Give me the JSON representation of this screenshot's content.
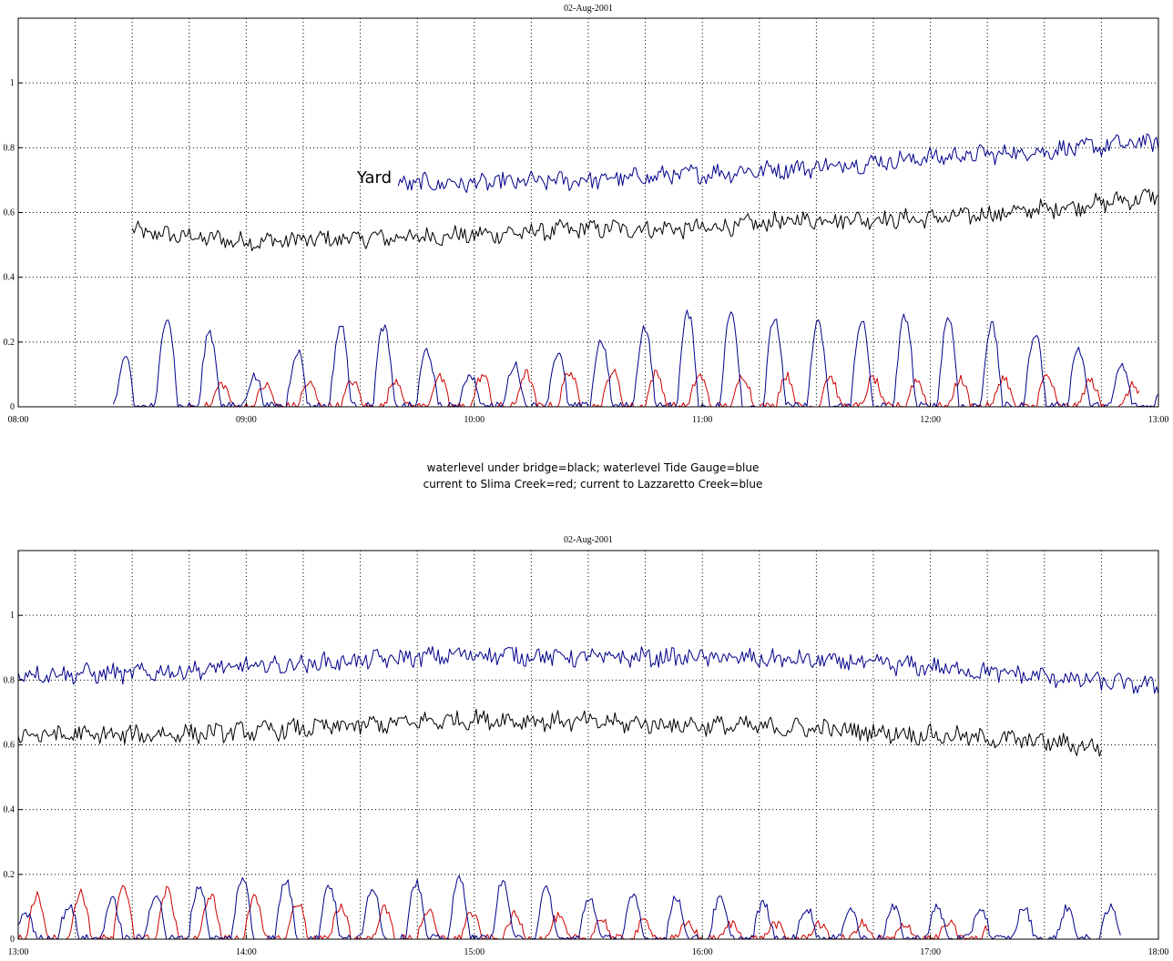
{
  "legend": {
    "line1": "waterlevel under bridge=black; waterlevel Tide Gauge=blue",
    "line2": "current to Slima Creek=red; current to Lazzaretto Creek=blue"
  },
  "chart_data": [
    {
      "type": "line",
      "title": "02-Aug-2001",
      "x_range": [
        "08:00",
        "13:00"
      ],
      "x_ticks": [
        "08:00",
        "09:00",
        "10:00",
        "11:00",
        "12:00",
        "13:00"
      ],
      "y_ticks": [
        "0",
        "0.2",
        "0.4",
        "0.6",
        "0.8",
        "1"
      ],
      "ylim": [
        0,
        1.2
      ],
      "grid": true,
      "annotation": {
        "text": "Yard",
        "x": "09:30",
        "y": 0.7
      },
      "series": [
        {
          "color": "#000000",
          "x": [
            "08:30",
            "09:00",
            "09:30",
            "10:00",
            "10:30",
            "11:00",
            "11:30",
            "12:00",
            "12:30",
            "13:00"
          ],
          "values": [
            0.54,
            0.51,
            0.52,
            0.53,
            0.55,
            0.55,
            0.58,
            0.58,
            0.61,
            0.65
          ]
        },
        {
          "color": "#00008b",
          "x": [
            "09:40",
            "10:00",
            "10:30",
            "11:00",
            "11:30",
            "12:00",
            "12:30",
            "13:00"
          ],
          "values": [
            0.69,
            0.69,
            0.7,
            0.72,
            0.74,
            0.77,
            0.79,
            0.82
          ]
        },
        {
          "color": "#cc0000",
          "x": [
            "08:45",
            "09:00",
            "09:30",
            "10:00",
            "10:30",
            "11:00",
            "11:30",
            "12:00",
            "12:30",
            "12:55"
          ],
          "values": [
            0.05,
            0.04,
            0.05,
            0.06,
            0.07,
            0.06,
            0.06,
            0.05,
            0.06,
            0.04
          ]
        },
        {
          "color": "#00008b",
          "x": [
            "08:25",
            "08:30",
            "08:45",
            "09:00",
            "09:30",
            "10:00",
            "10:30",
            "11:00",
            "11:30",
            "12:00",
            "12:30",
            "13:00"
          ],
          "values": [
            0.02,
            0.14,
            0.2,
            0.05,
            0.18,
            0.06,
            0.12,
            0.19,
            0.16,
            0.18,
            0.14,
            0.05
          ]
        }
      ]
    },
    {
      "type": "line",
      "title": "02-Aug-2001",
      "x_range": [
        "13:00",
        "18:00"
      ],
      "x_ticks": [
        "13:00",
        "14:00",
        "15:00",
        "16:00",
        "17:00",
        "18:00"
      ],
      "y_ticks": [
        "0",
        "0.2",
        "0.4",
        "0.6",
        "0.8",
        "1"
      ],
      "ylim": [
        0,
        1.2
      ],
      "grid": true,
      "series": [
        {
          "color": "#00008b",
          "x": [
            "13:00",
            "13:30",
            "14:00",
            "14:30",
            "15:00",
            "15:30",
            "16:00",
            "16:30",
            "17:00",
            "17:30",
            "18:00"
          ],
          "values": [
            0.82,
            0.82,
            0.84,
            0.86,
            0.88,
            0.87,
            0.87,
            0.86,
            0.84,
            0.81,
            0.78
          ]
        },
        {
          "color": "#000000",
          "x": [
            "13:00",
            "13:30",
            "14:00",
            "14:30",
            "15:00",
            "15:30",
            "16:00",
            "16:30",
            "17:00",
            "17:30",
            "17:45"
          ],
          "values": [
            0.63,
            0.63,
            0.64,
            0.66,
            0.68,
            0.67,
            0.66,
            0.65,
            0.63,
            0.61,
            0.59
          ]
        },
        {
          "color": "#cc0000",
          "x": [
            "13:00",
            "13:30",
            "14:00",
            "14:30",
            "15:00",
            "15:30",
            "16:00",
            "16:30",
            "17:00",
            "17:15"
          ],
          "values": [
            0.08,
            0.1,
            0.08,
            0.06,
            0.05,
            0.04,
            0.03,
            0.03,
            0.03,
            0.03
          ]
        },
        {
          "color": "#00008b",
          "x": [
            "13:00",
            "13:30",
            "14:00",
            "14:30",
            "15:00",
            "15:30",
            "16:00",
            "16:30",
            "17:00",
            "17:30",
            "17:50"
          ],
          "values": [
            0.05,
            0.08,
            0.12,
            0.1,
            0.12,
            0.08,
            0.08,
            0.06,
            0.06,
            0.06,
            0.06
          ]
        }
      ]
    }
  ]
}
